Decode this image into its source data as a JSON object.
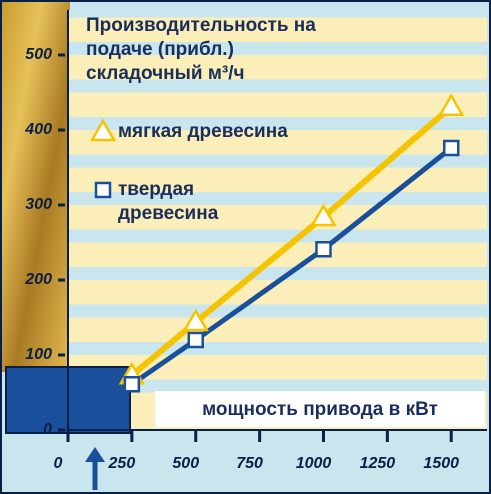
{
  "chart_data": {
    "type": "line",
    "title": [
      "Производительность на",
      "подаче (прибл.)",
      "складочный м³/ч"
    ],
    "x_annotation": "мощность привода в кВт",
    "x": [
      250,
      500,
      1000,
      1500
    ],
    "series": [
      {
        "name": "мягкая древесина",
        "color": "#f5c400",
        "marker": "triangle",
        "values": [
          73,
          144,
          284,
          431
        ]
      },
      {
        "name": "твердая древесина",
        "color": "#1a4f9c",
        "marker": "square",
        "values": [
          61,
          120,
          241,
          376
        ]
      }
    ],
    "xlim": [
      0,
      1640
    ],
    "ylim": [
      0,
      560
    ],
    "xticks": [
      0,
      250,
      500,
      750,
      1000,
      1250,
      1500
    ],
    "yticks": [
      0,
      100,
      200,
      300,
      400,
      500
    ]
  }
}
